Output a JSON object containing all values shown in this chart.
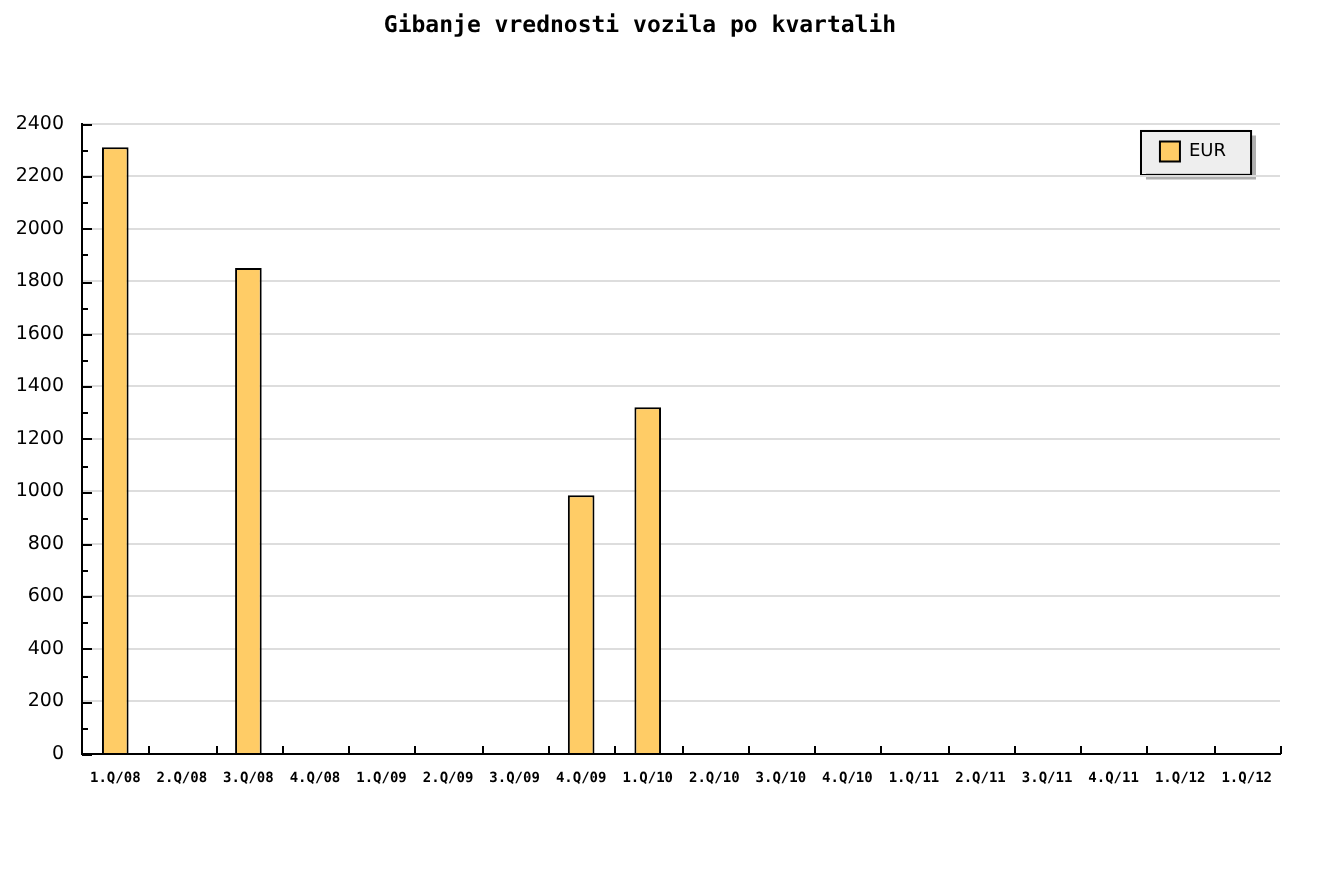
{
  "chart_data": {
    "type": "bar",
    "title": "Gibanje vrednosti vozila po kvartalih",
    "categories": [
      "1.Q/08",
      "2.Q/08",
      "3.Q/08",
      "4.Q/08",
      "1.Q/09",
      "2.Q/09",
      "3.Q/09",
      "4.Q/09",
      "1.Q/10",
      "2.Q/10",
      "3.Q/10",
      "4.Q/10",
      "1.Q/11",
      "2.Q/11",
      "3.Q/11",
      "4.Q/11",
      "1.Q/12",
      "1.Q/12"
    ],
    "series": [
      {
        "name": "EUR",
        "color": "#ffcc66",
        "values": [
          2310,
          null,
          1850,
          null,
          null,
          null,
          null,
          985,
          1320,
          null,
          null,
          null,
          null,
          null,
          null,
          null,
          null,
          null
        ]
      }
    ],
    "ylim": [
      0,
      2400
    ],
    "yticks": [
      0,
      {
        "value": 100,
        "label": null
      },
      200,
      {
        "value": 300,
        "label": null
      },
      400,
      {
        "value": 500,
        "label": null
      },
      600,
      {
        "value": 700,
        "label": null
      },
      800,
      {
        "value": 900,
        "label": null
      },
      1000,
      {
        "value": 1100,
        "label": null
      },
      1200,
      {
        "value": 1300,
        "label": null
      },
      1400,
      {
        "value": 1500,
        "label": null
      },
      1600,
      {
        "value": 1700,
        "label": null
      },
      1800,
      {
        "value": 1900,
        "label": null
      },
      2000,
      {
        "value": 2100,
        "label": null
      },
      2200,
      {
        "value": 2300,
        "label": null
      },
      2400
    ],
    "grid": "y",
    "legend": "top right"
  }
}
